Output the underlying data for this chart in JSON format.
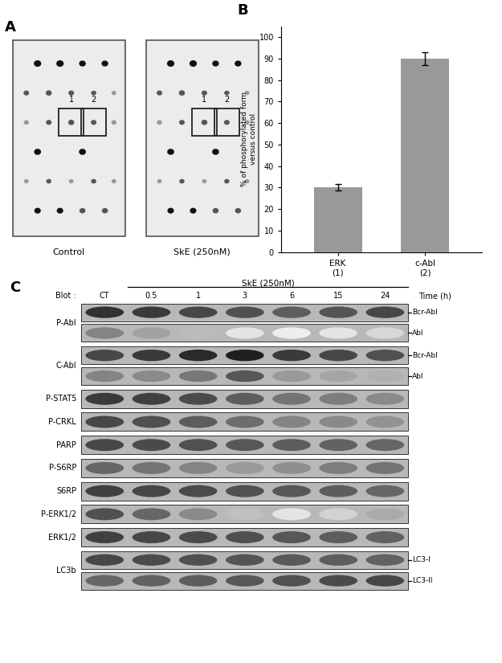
{
  "panel_A_label": "A",
  "panel_B_label": "B",
  "panel_C_label": "C",
  "bar_values": [
    30,
    90
  ],
  "bar_errors": [
    1.5,
    3.0
  ],
  "bar_categories": [
    "ERK\n(1)",
    "c-Abl\n(2)"
  ],
  "bar_color": "#999999",
  "ylabel": "% of phosphorylated form\nversus control",
  "yticks": [
    0,
    10,
    20,
    30,
    40,
    50,
    60,
    70,
    80,
    90,
    100
  ],
  "ylim": [
    0,
    105
  ],
  "blot_label": "Blot :",
  "ske_label": "SkE (250nM)",
  "time_label": "Time (h)",
  "columns": [
    "CT",
    "0.5",
    "1",
    "3",
    "6",
    "15",
    "24"
  ],
  "row_labels": [
    "P-Abl",
    "C-Abl",
    "P-STAT5",
    "P-CRKL",
    "PARP",
    "P-S6RP",
    "S6RP",
    "P-ERK1/2",
    "ERK1/2",
    "LC3b"
  ],
  "control_label": "Control",
  "ske_blot_label": "SkE (250nM)",
  "bg_color": "#ffffff",
  "dot_dark": "#111111",
  "dot_mid": "#555555",
  "dot_light": "#999999",
  "membrane_bg": "#dcdcdc",
  "blot_box_bg": "#b0b0b0",
  "band_bg": "#888888"
}
